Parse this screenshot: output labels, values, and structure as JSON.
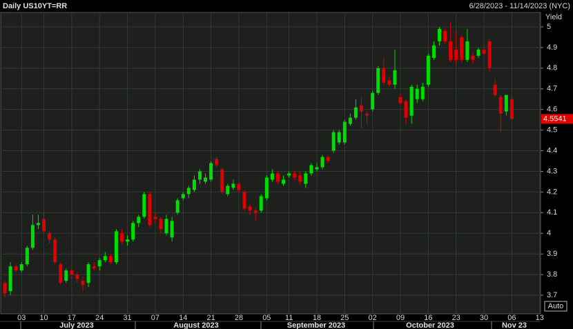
{
  "chart_data": {
    "type": "candlestick",
    "title": "Daily US10YT=RR",
    "subtitle": "6/28/2023 - 11/14/2023 (NYC)",
    "y_label": "Yield",
    "categories": [
      null,
      null,
      null,
      "03",
      null,
      null,
      null,
      "10",
      null,
      null,
      null,
      null,
      "17",
      null,
      null,
      null,
      null,
      "24",
      null,
      null,
      null,
      null,
      "31",
      null,
      null,
      null,
      null,
      "07",
      null,
      null,
      null,
      null,
      "14",
      null,
      null,
      null,
      null,
      "21",
      null,
      null,
      null,
      null,
      "28",
      null,
      null,
      null,
      null,
      "05",
      null,
      null,
      null,
      "11",
      null,
      null,
      null,
      null,
      "18",
      null,
      null,
      null,
      null,
      "25",
      null,
      null,
      null,
      null,
      "02",
      null,
      null,
      null,
      null,
      "09",
      null,
      null,
      null,
      null,
      "16",
      null,
      null,
      null,
      null,
      "23",
      null,
      null,
      null,
      null,
      "30",
      null,
      null,
      null,
      null,
      "06",
      null,
      null,
      null,
      null,
      "13"
    ],
    "months": [
      "July 2023",
      "August 2023",
      "September 2023",
      "October 2023",
      "Nov 23"
    ],
    "open": [
      3.76,
      3.72,
      3.84,
      3.82,
      3.85,
      3.93,
      4.04,
      4.07,
      4,
      3.97,
      3.85,
      3.77,
      3.82,
      3.8,
      3.77,
      3.76,
      3.84,
      3.84,
      3.87,
      3.89,
      3.86,
      4,
      3.96,
      3.97,
      4.05,
      4.08,
      4.19,
      4.08,
      4.07,
      4,
      3.98,
      4.1,
      4.17,
      4.19,
      4.21,
      4.26,
      4.25,
      4.26,
      4.36,
      4.31,
      4.19,
      4.22,
      4.24,
      4.2,
      4.13,
      4.11,
      4.11,
      4.17,
      4.26,
      4.29,
      4.24,
      4.28,
      4.29,
      4.28,
      4.24,
      4.29,
      4.31,
      4.32,
      4.37,
      4.4,
      4.44,
      4.44,
      4.53,
      4.56,
      4.62,
      4.58,
      4.6,
      4.68,
      4.8,
      4.74,
      4.72,
      4.66,
      4.64,
      4.57,
      4.65,
      4.65,
      4.72,
      4.85,
      4.93,
      4.98,
      4.93,
      4.89,
      4.95,
      4.84,
      4.86,
      4.86,
      4.89,
      4.93,
      4.72,
      4.66,
      4.59,
      4.65,
      null,
      null,
      null,
      null,
      null
    ],
    "high": [
      3.77,
      3.86,
      3.85,
      3.86,
      3.94,
      4.09,
      4.09,
      4.1,
      4.01,
      3.98,
      3.86,
      3.83,
      3.83,
      3.81,
      3.79,
      3.86,
      3.86,
      3.88,
      3.91,
      3.9,
      4.02,
      4.02,
      3.99,
      4.06,
      4.09,
      4.2,
      4.2,
      4.1,
      4.08,
      4.09,
      4.08,
      4.17,
      4.2,
      4.23,
      4.28,
      4.31,
      4.29,
      4.35,
      4.37,
      4.32,
      4.24,
      4.26,
      4.25,
      4.21,
      4.14,
      4.12,
      4.19,
      4.28,
      4.31,
      4.3,
      4.28,
      4.3,
      4.3,
      4.3,
      4.3,
      4.34,
      4.34,
      4.38,
      4.38,
      4.5,
      4.5,
      4.55,
      4.58,
      4.65,
      4.66,
      4.59,
      4.69,
      4.81,
      4.85,
      4.76,
      4.89,
      4.68,
      4.65,
      4.72,
      4.72,
      4.73,
      4.87,
      4.93,
      5,
      4.99,
      5.02,
      4.98,
      4.96,
      4.99,
      4.88,
      4.9,
      4.9,
      4.94,
      4.75,
      4.67,
      4.67,
      4.66,
      null,
      null,
      null,
      null,
      null
    ],
    "low": [
      3.69,
      3.7,
      3.81,
      3.81,
      3.84,
      3.92,
      4.02,
      4,
      3.95,
      3.85,
      3.75,
      3.76,
      3.78,
      3.76,
      3.72,
      3.74,
      3.82,
      3.82,
      3.86,
      3.85,
      3.85,
      3.95,
      3.94,
      3.96,
      4.03,
      4.07,
      4.03,
      4.05,
      4,
      3.99,
      3.96,
      4.09,
      4.16,
      4.17,
      4.2,
      4.24,
      4.24,
      4.25,
      4.32,
      4.19,
      4.18,
      4.21,
      4.19,
      4.11,
      4.09,
      4.06,
      4.1,
      4.16,
      4.25,
      4.24,
      4.23,
      4.27,
      4.26,
      4.24,
      4.22,
      4.28,
      4.3,
      4.31,
      4.34,
      4.39,
      4.43,
      4.43,
      4.52,
      4.55,
      4.51,
      4.53,
      4.59,
      4.67,
      4.72,
      4.71,
      4.7,
      4.62,
      4.53,
      4.53,
      4.63,
      4.64,
      4.71,
      4.84,
      4.91,
      4.92,
      4.83,
      4.82,
      4.83,
      4.83,
      4.82,
      4.85,
      4.86,
      4.78,
      4.66,
      4.49,
      4.57,
      4.55,
      null,
      null,
      null,
      null,
      null
    ],
    "close": [
      3.71,
      3.84,
      3.82,
      3.85,
      3.93,
      4.04,
      4.05,
      4.01,
      3.97,
      3.86,
      3.76,
      3.82,
      3.8,
      3.78,
      3.75,
      3.85,
      3.83,
      3.87,
      3.89,
      3.86,
      4.01,
      3.96,
      3.97,
      4.05,
      4.08,
      4.19,
      4.04,
      4.07,
      4.02,
      4.07,
      4.06,
      4.16,
      4.19,
      4.22,
      4.26,
      4.3,
      4.27,
      4.34,
      4.33,
      4.2,
      4.23,
      4.24,
      4.21,
      4.12,
      4.11,
      4.1,
      4.18,
      4.27,
      4.29,
      4.25,
      4.26,
      4.29,
      4.27,
      4.25,
      4.29,
      4.33,
      4.32,
      4.37,
      4.35,
      4.49,
      4.49,
      4.54,
      4.56,
      4.61,
      4.59,
      4.57,
      4.68,
      4.8,
      4.73,
      4.72,
      4.79,
      4.63,
      4.56,
      4.71,
      4.7,
      4.71,
      4.86,
      4.91,
      4.99,
      4.93,
      4.84,
      4.84,
      4.84,
      4.93,
      4.84,
      4.89,
      4.87,
      4.8,
      4.67,
      4.58,
      4.67,
      4.5541,
      null,
      null,
      null,
      null,
      null
    ],
    "up_color": "#00dd00",
    "down_color": "#e00000",
    "ylim": [
      3.61,
      5.07
    ],
    "yticks": [
      3.7,
      3.8,
      3.9,
      4,
      4.1,
      4.2,
      4.3,
      4.4,
      4.5,
      4.6,
      4.7,
      4.8,
      4.9,
      5
    ],
    "grid": true,
    "last_price": 4.5541,
    "button": "Auto"
  }
}
